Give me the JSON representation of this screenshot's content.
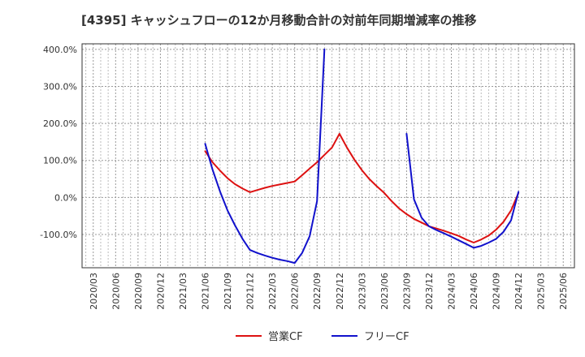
{
  "chart_data": {
    "type": "line",
    "title": "[4395]  キャッシュフローの12か月移動合計の対前年同期増減率の推移",
    "xlabel": "",
    "ylabel": "",
    "ylim": [
      -190,
      415
    ],
    "y_ticks": [
      400,
      300,
      200,
      100,
      0,
      -100
    ],
    "y_tick_labels": [
      "400.0%",
      "300.0%",
      "200.0%",
      "100.0%",
      "0.0%",
      "-100.0%"
    ],
    "x_tick_labels": [
      "2020/03",
      "2020/06",
      "2020/09",
      "2020/12",
      "2021/03",
      "2021/06",
      "2021/09",
      "2021/12",
      "2022/03",
      "2022/06",
      "2022/09",
      "2022/12",
      "2023/03",
      "2023/06",
      "2023/09",
      "2023/12",
      "2024/03",
      "2024/06",
      "2024/09",
      "2024/12",
      "2025/03",
      "2025/06"
    ],
    "grid": true,
    "legend_position": "bottom",
    "series": [
      {
        "name": "営業CF",
        "color": "#dd1111",
        "points": [
          [
            5.0,
            125
          ],
          [
            5.33,
            95
          ],
          [
            5.67,
            72
          ],
          [
            6.0,
            52
          ],
          [
            6.33,
            36
          ],
          [
            6.67,
            24
          ],
          [
            7.0,
            14
          ],
          [
            7.33,
            20
          ],
          [
            7.67,
            26
          ],
          [
            8.0,
            31
          ],
          [
            8.33,
            35
          ],
          [
            8.67,
            39
          ],
          [
            9.0,
            43
          ],
          [
            9.33,
            60
          ],
          [
            9.67,
            78
          ],
          [
            10.0,
            95
          ],
          [
            10.33,
            115
          ],
          [
            10.67,
            135
          ],
          [
            11.0,
            172
          ],
          [
            11.33,
            135
          ],
          [
            11.67,
            102
          ],
          [
            12.0,
            74
          ],
          [
            12.33,
            50
          ],
          [
            12.67,
            30
          ],
          [
            13.0,
            12
          ],
          [
            13.33,
            -10
          ],
          [
            13.67,
            -30
          ],
          [
            14.0,
            -45
          ],
          [
            14.33,
            -58
          ],
          [
            14.67,
            -68
          ],
          [
            15.0,
            -78
          ],
          [
            15.33,
            -84
          ],
          [
            15.67,
            -90
          ],
          [
            16.0,
            -97
          ],
          [
            16.33,
            -104
          ],
          [
            16.67,
            -114
          ],
          [
            17.0,
            -122
          ],
          [
            17.33,
            -114
          ],
          [
            17.67,
            -103
          ],
          [
            18.0,
            -87
          ],
          [
            18.33,
            -66
          ],
          [
            18.67,
            -35
          ],
          [
            19.0,
            12
          ]
        ]
      },
      {
        "name": "フリーCF",
        "color": "#1111cc",
        "segments": [
          [
            [
              5.0,
              145
            ],
            [
              5.33,
              75
            ],
            [
              5.67,
              15
            ],
            [
              6.0,
              -35
            ],
            [
              6.33,
              -75
            ],
            [
              6.67,
              -112
            ],
            [
              7.0,
              -142
            ],
            [
              7.33,
              -150
            ],
            [
              7.67,
              -157
            ],
            [
              8.0,
              -163
            ],
            [
              8.33,
              -168
            ],
            [
              8.67,
              -172
            ],
            [
              9.0,
              -177
            ],
            [
              9.33,
              -150
            ],
            [
              9.67,
              -105
            ],
            [
              10.0,
              -10
            ],
            [
              10.33,
              400
            ]
          ],
          [
            [
              14.0,
              172
            ],
            [
              14.33,
              -5
            ],
            [
              14.67,
              -55
            ],
            [
              15.0,
              -78
            ],
            [
              15.33,
              -88
            ],
            [
              15.67,
              -97
            ],
            [
              16.0,
              -106
            ],
            [
              16.33,
              -116
            ],
            [
              16.67,
              -126
            ],
            [
              17.0,
              -136
            ],
            [
              17.33,
              -131
            ],
            [
              17.67,
              -122
            ],
            [
              18.0,
              -112
            ],
            [
              18.33,
              -93
            ],
            [
              18.67,
              -62
            ],
            [
              19.0,
              15
            ]
          ]
        ]
      }
    ]
  }
}
